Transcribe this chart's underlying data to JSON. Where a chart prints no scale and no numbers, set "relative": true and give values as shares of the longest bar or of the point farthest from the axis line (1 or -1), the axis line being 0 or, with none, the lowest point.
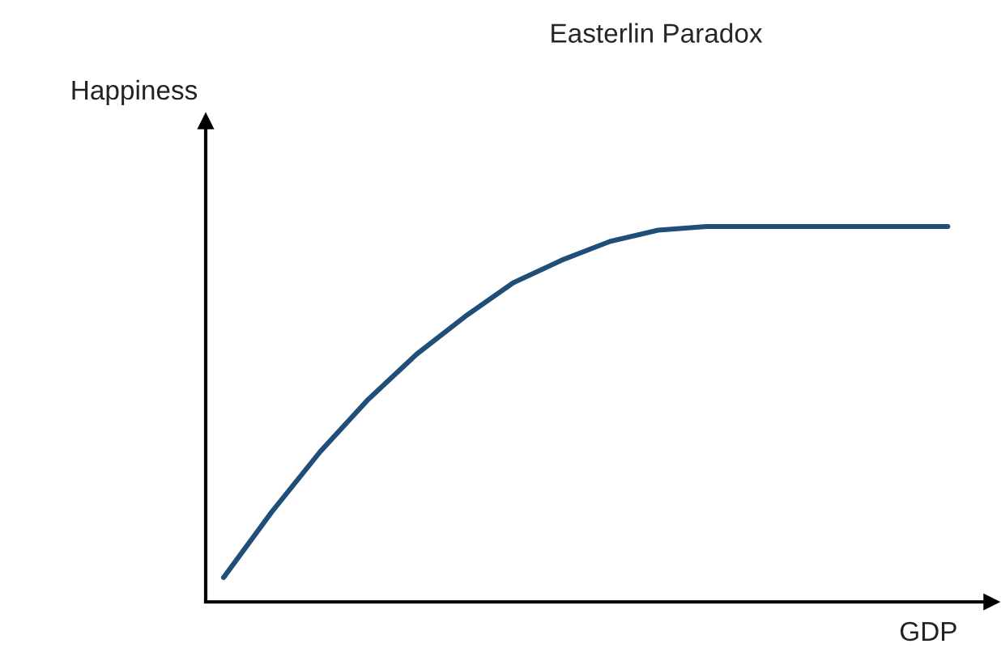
{
  "chart_data": {
    "type": "line",
    "title": "Easterlin Paradox",
    "xlabel": "GDP",
    "ylabel": "Happiness",
    "relative": true,
    "categories": [
      null,
      null,
      null,
      null,
      null,
      null,
      null,
      null,
      null,
      null,
      null,
      null,
      null,
      null,
      null,
      null
    ],
    "series": [
      {
        "color": "#1f4e79",
        "values": [
          0.065,
          0.24,
          0.4,
          0.54,
          0.66,
          0.76,
          0.85,
          0.91,
          0.96,
          0.99,
          1,
          1,
          1,
          1,
          1,
          1
        ]
      }
    ],
    "marker": "none",
    "line_style": "solid"
  }
}
